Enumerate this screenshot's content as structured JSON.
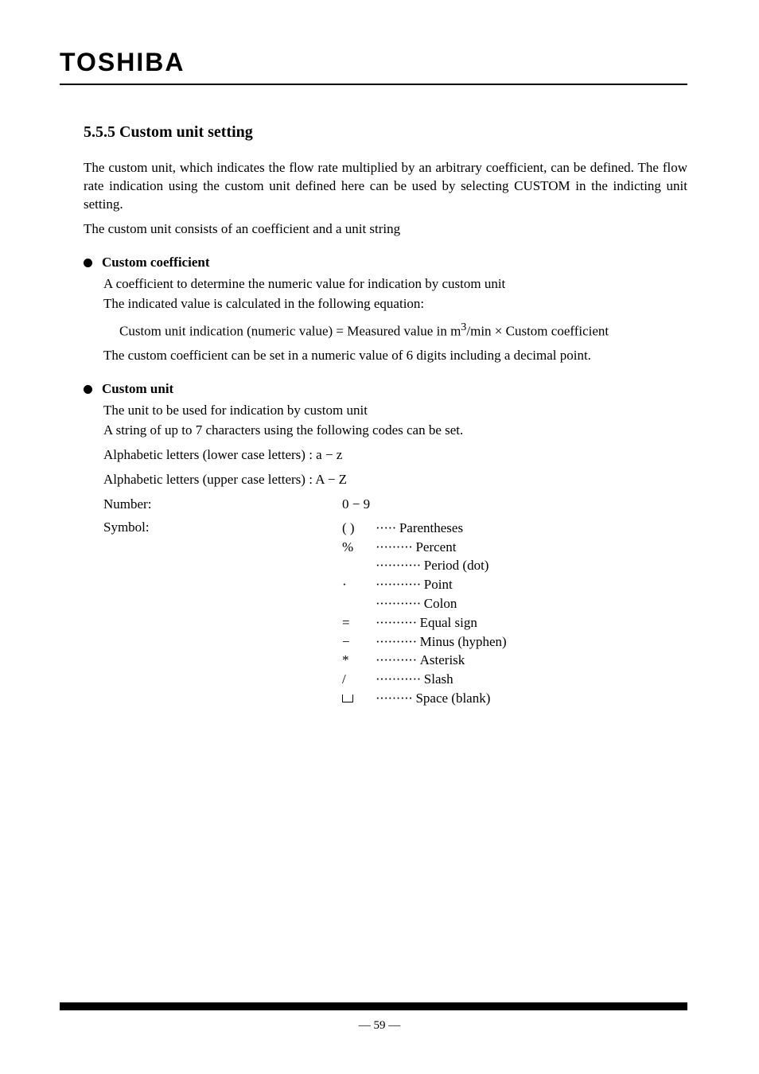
{
  "logo": "TOSHIBA",
  "heading": "5.5.5 Custom unit setting",
  "para1": "The custom unit, which indicates the flow rate multiplied by an arbitrary coefficient, can be defined. The flow rate indication using the custom unit defined here can be used by selecting CUSTOM in the indicting unit setting.",
  "para2": "The custom unit consists of an coefficient and a unit string",
  "coef": {
    "label": "Custom coefficient",
    "line1": "A coefficient to determine the numeric value for indication by custom unit",
    "line2": "The indicated value is calculated in the following equation:",
    "formula_pre": "Custom unit indication (numeric value) = Measured value in m",
    "formula_sup": "3",
    "formula_post": "/min × Custom coefficient",
    "line3": "The custom coefficient can be set in a numeric value of 6 digits including a decimal point."
  },
  "unit": {
    "label": "Custom unit",
    "line1": "The unit to be used for indication by custom unit",
    "line2": "A string of up to 7 characters using the following codes can be set.",
    "alpha_lower_label": "Alphabetic letters (lower case letters) :",
    "alpha_lower_val": "a − z",
    "alpha_upper_label": "Alphabetic letters (upper case letters) :",
    "alpha_upper_val": "A − Z",
    "number_label": "Number:",
    "number_val": "0 − 9",
    "symbol_label": "Symbol:",
    "symbols": [
      {
        "glyph": "(   )",
        "dots": "·····",
        "desc": "Parentheses"
      },
      {
        "glyph": "%",
        "dots": "·········",
        "desc": "Percent"
      },
      {
        "glyph": "",
        "dots": "···········",
        "desc": "Period (dot)"
      },
      {
        "glyph": "·",
        "dots": "···········",
        "desc": "Point"
      },
      {
        "glyph": "",
        "dots": "···········",
        "desc": "Colon"
      },
      {
        "glyph": "=",
        "dots": "··········",
        "desc": "Equal sign"
      },
      {
        "glyph": "−",
        "dots": "··········",
        "desc": "Minus (hyphen)"
      },
      {
        "glyph": "*",
        "dots": "··········",
        "desc": "Asterisk"
      },
      {
        "glyph": "/",
        "dots": "···········",
        "desc": "Slash"
      },
      {
        "glyph": "SPACE",
        "dots": "·········",
        "desc": "Space (blank)"
      }
    ]
  },
  "footer": "— 59 —"
}
